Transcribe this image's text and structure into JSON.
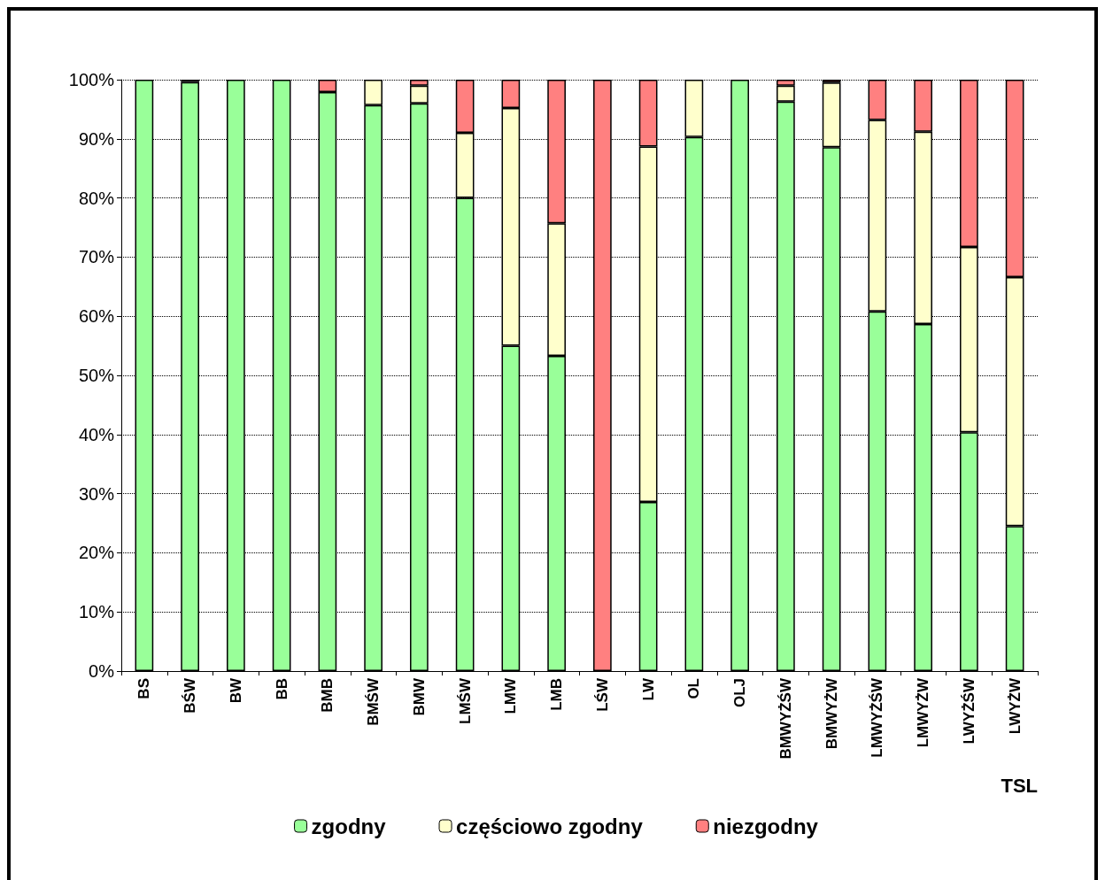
{
  "chart_data": {
    "type": "bar",
    "stacked": true,
    "xlabel": "TSL",
    "categories": [
      "BS",
      "BŚW",
      "BW",
      "BB",
      "BMB",
      "BMŚW",
      "BMW",
      "LMŚW",
      "LMW",
      "LMB",
      "LŚW",
      "LW",
      "OL",
      "OLJ",
      "BMWYŻŚW",
      "BMWYŻW",
      "LMWYŻŚW",
      "LMWYŻW",
      "LWYŻŚW",
      "LWYŻW"
    ],
    "series": [
      {
        "name": "zgodny",
        "color": "#99ff99",
        "values": [
          100,
          99.6,
          100,
          100,
          97.9,
          95.7,
          96,
          80,
          55,
          53.3,
          0,
          28.6,
          90.3,
          100,
          96.3,
          88.6,
          60.8,
          58.7,
          40.4,
          24.5
        ]
      },
      {
        "name": "częściowo zgodny",
        "color": "#ffffcc",
        "values": [
          0,
          0,
          0,
          0,
          0,
          4.3,
          3,
          11,
          40.2,
          22.4,
          0,
          60.1,
          9.7,
          0,
          2.7,
          10.9,
          32.4,
          32.5,
          31.3,
          42.1
        ]
      },
      {
        "name": "niezgodny",
        "color": "#ff8080",
        "values": [
          0,
          0.4,
          0,
          0,
          2.1,
          0,
          1,
          9,
          4.8,
          24.3,
          100,
          11.3,
          0,
          0,
          1,
          0.5,
          6.8,
          8.8,
          28.3,
          33.4
        ]
      }
    ],
    "ylim": [
      0,
      100
    ],
    "yticks": [
      {
        "value": 0,
        "label": "0%"
      },
      {
        "value": 10,
        "label": "10%"
      },
      {
        "value": 20,
        "label": "20%"
      },
      {
        "value": 30,
        "label": "30%"
      },
      {
        "value": 40,
        "label": "40%"
      },
      {
        "value": 50,
        "label": "50%"
      },
      {
        "value": 60,
        "label": "60%"
      },
      {
        "value": 70,
        "label": "70%"
      },
      {
        "value": 80,
        "label": "80%"
      },
      {
        "value": 90,
        "label": "90%"
      },
      {
        "value": 100,
        "label": "100%"
      }
    ],
    "grid": "y",
    "legend": "bottom"
  }
}
